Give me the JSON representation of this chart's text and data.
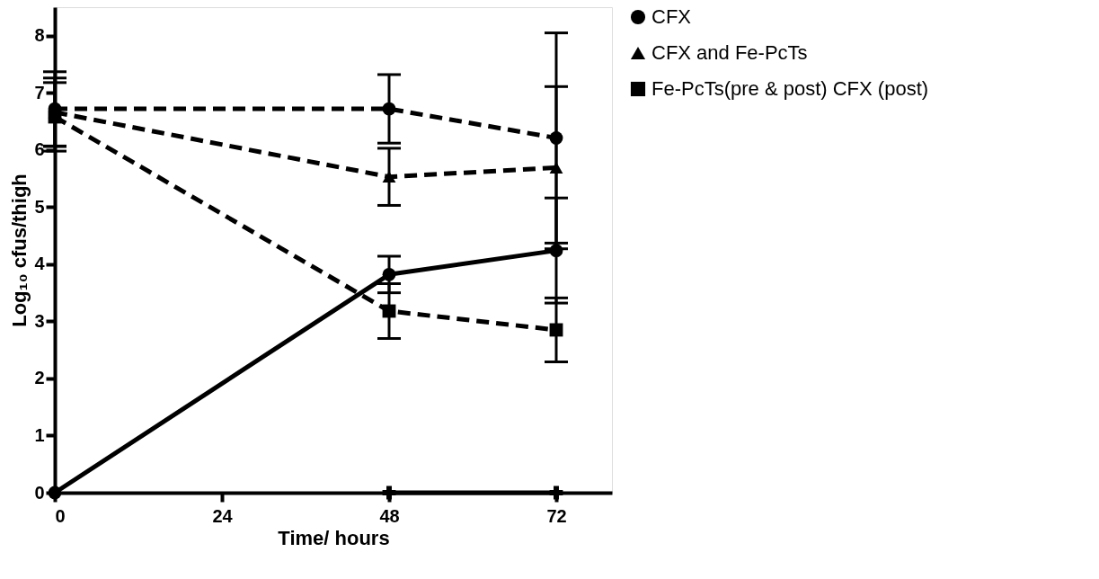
{
  "chart_data": {
    "type": "line",
    "xlabel": "Time/ hours",
    "ylabel": "Log₁₀ cfus/thigh",
    "x": [
      0,
      48,
      72
    ],
    "xlim": [
      0,
      80
    ],
    "xticks": [
      0,
      24,
      48,
      72
    ],
    "ylim": [
      0,
      8.5
    ],
    "yticks": [
      0,
      1,
      2,
      3,
      4,
      5,
      6,
      7,
      8
    ],
    "grid": false,
    "legend": "right",
    "series": [
      {
        "name": "CFX",
        "color": "#000000",
        "marker": "circle",
        "line_style": "dashed",
        "values": [
          6.72,
          6.72,
          6.21
        ],
        "errors": [
          0.65,
          0.6,
          1.84
        ]
      },
      {
        "name": "CFX and Fe-PcTs",
        "color": "#000000",
        "marker": "triangle",
        "line_style": "dashed",
        "values": [
          6.66,
          5.53,
          5.69
        ],
        "errors": [
          0.6,
          0.5,
          1.42
        ]
      },
      {
        "name": "Fe-PcTs(pre & post) CFX (post)",
        "color": "#000000",
        "marker": "square",
        "line_style": "dashed",
        "values": [
          6.58,
          3.18,
          2.85
        ],
        "errors": [
          0.6,
          0.48,
          0.56
        ]
      },
      {
        "color": "#000000",
        "marker": "circle",
        "line_style": "solid",
        "values": [
          0,
          3.82,
          4.24
        ],
        "errors": [
          null,
          0.32,
          0.92
        ]
      },
      {
        "color": "#000000",
        "marker": "cross",
        "line_style": "solid",
        "x": [
          48,
          72
        ],
        "values": [
          0,
          0
        ]
      }
    ]
  }
}
